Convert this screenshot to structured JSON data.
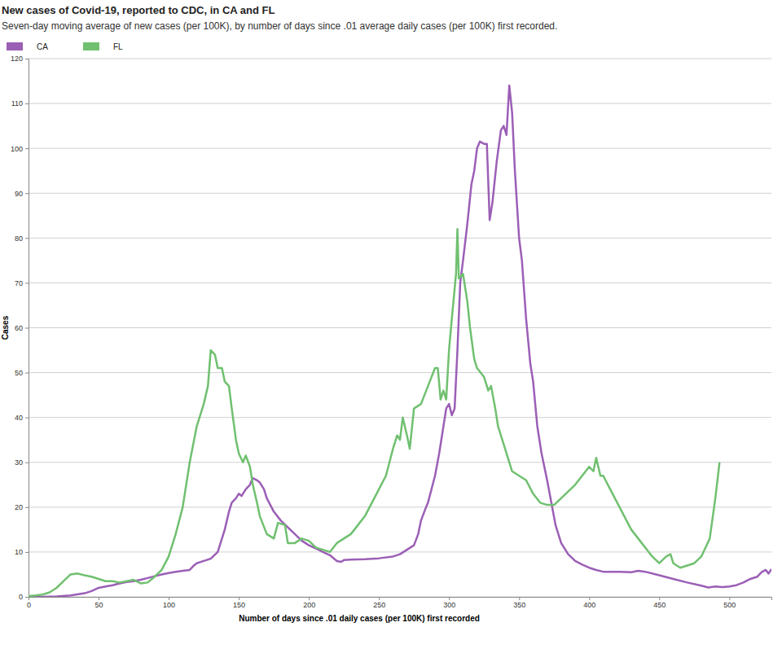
{
  "chart_data": {
    "type": "line",
    "title": "New cases of Covid-19, reported to CDC, in CA and FL",
    "subtitle": "Seven-day moving average of new cases (per 100K), by number of days since .01 average daily cases (per 100K) first recorded.",
    "x_label": "Number of days since .01 daily cases (per 100K) first recorded",
    "y_label": "Cases",
    "xlim": [
      0,
      530
    ],
    "xticks": [
      0,
      50,
      100,
      150,
      200,
      250,
      300,
      350,
      400,
      450,
      500
    ],
    "ylim": [
      0,
      120
    ],
    "yticks": [
      0,
      10,
      20,
      30,
      40,
      50,
      60,
      70,
      80,
      90,
      100,
      110,
      120
    ],
    "grid": true,
    "legend": "top-left",
    "series": [
      {
        "name": "CA",
        "color": "#9b5fb6",
        "x": [
          0,
          10,
          20,
          30,
          40,
          45,
          50,
          55,
          60,
          65,
          70,
          75,
          80,
          85,
          90,
          95,
          100,
          105,
          110,
          115,
          118,
          120,
          125,
          130,
          135,
          138,
          140,
          143,
          145,
          148,
          150,
          152,
          155,
          158,
          160,
          163,
          165,
          168,
          170,
          175,
          180,
          185,
          190,
          195,
          200,
          205,
          210,
          215,
          220,
          223,
          225,
          230,
          240,
          250,
          260,
          265,
          270,
          275,
          278,
          280,
          283,
          285,
          290,
          293,
          296,
          298,
          300,
          302,
          304,
          306,
          308,
          310,
          313,
          316,
          318,
          320,
          322,
          325,
          327,
          329,
          331,
          334,
          337,
          339,
          341,
          343,
          345,
          347,
          350,
          352,
          355,
          358,
          360,
          363,
          366,
          370,
          373,
          376,
          380,
          385,
          390,
          395,
          400,
          405,
          410,
          420,
          430,
          435,
          440,
          450,
          460,
          470,
          480,
          485,
          490,
          495,
          500,
          505,
          510,
          515,
          520,
          523,
          526,
          528,
          530
        ],
        "values": [
          0,
          0,
          0.1,
          0.3,
          0.8,
          1.3,
          2,
          2.3,
          2.6,
          3,
          3.3,
          3.5,
          3.8,
          4.2,
          4.6,
          5,
          5.3,
          5.6,
          5.8,
          6,
          7,
          7.5,
          8,
          8.5,
          10,
          13,
          15,
          19,
          21,
          22,
          23,
          22.5,
          24,
          25,
          26.5,
          26,
          25.5,
          24,
          22,
          19,
          17,
          15.5,
          14,
          12.5,
          11.5,
          10.8,
          10,
          9.3,
          8,
          7.8,
          8.2,
          8.3,
          8.4,
          8.6,
          9,
          9.5,
          10.5,
          11.5,
          14,
          17,
          19.5,
          21,
          27,
          32,
          38,
          42,
          43,
          40.5,
          42,
          55,
          70,
          75,
          83,
          92,
          95,
          100,
          101.5,
          101,
          101,
          84,
          88,
          97,
          104,
          105,
          103,
          114,
          108,
          95,
          80,
          75,
          62,
          52,
          48,
          38,
          32,
          26,
          21,
          16,
          12,
          9.5,
          8,
          7.2,
          6.5,
          6,
          5.6,
          5.6,
          5.5,
          5.8,
          5.6,
          4.8,
          4,
          3.2,
          2.5,
          2.1,
          2.3,
          2.2,
          2.3,
          2.6,
          3.2,
          4,
          4.5,
          5.5,
          6,
          5.2,
          6.2
        ]
      },
      {
        "name": "FL",
        "color": "#70c070",
        "x": [
          0,
          5,
          10,
          15,
          20,
          25,
          30,
          35,
          40,
          45,
          50,
          55,
          60,
          65,
          70,
          75,
          80,
          85,
          90,
          95,
          100,
          105,
          110,
          115,
          120,
          125,
          128,
          130,
          133,
          135,
          138,
          140,
          143,
          145,
          148,
          150,
          153,
          155,
          158,
          160,
          163,
          165,
          170,
          175,
          178,
          183,
          185,
          190,
          195,
          200,
          205,
          210,
          215,
          220,
          225,
          230,
          235,
          240,
          245,
          250,
          255,
          260,
          263,
          265,
          267,
          270,
          272,
          275,
          280,
          285,
          290,
          292,
          294,
          296,
          298,
          300,
          302,
          305,
          306,
          307,
          310,
          313,
          315,
          318,
          320,
          325,
          328,
          330,
          333,
          335,
          340,
          345,
          350,
          355,
          360,
          365,
          370,
          375,
          380,
          385,
          390,
          395,
          400,
          403,
          405,
          408,
          410,
          415,
          420,
          425,
          430,
          435,
          440,
          445,
          450,
          455,
          458,
          460,
          465,
          470,
          475,
          480,
          483,
          486,
          490,
          493
        ],
        "values": [
          0.2,
          0.3,
          0.5,
          1,
          2,
          3.5,
          5,
          5.2,
          4.8,
          4.5,
          4,
          3.5,
          3.5,
          3.2,
          3.5,
          3.8,
          3,
          3.2,
          4.5,
          6,
          9,
          14,
          20,
          30,
          38,
          43,
          47,
          55,
          54,
          51,
          51,
          48,
          47,
          42,
          35,
          32,
          30,
          31.5,
          29,
          25,
          21,
          18,
          14,
          13,
          16.5,
          16,
          12,
          12,
          13,
          12.5,
          11,
          10.5,
          10,
          12,
          13,
          14,
          16,
          18,
          21,
          24,
          27,
          33,
          36,
          35,
          40,
          36,
          33,
          42,
          43,
          47,
          51,
          51,
          44,
          46,
          44,
          55,
          62,
          72,
          82,
          71,
          72,
          66,
          60,
          53,
          51,
          49,
          46,
          47,
          42,
          38,
          33,
          28,
          27,
          26,
          23,
          21,
          20.5,
          20.5,
          22,
          23.5,
          25,
          27,
          29,
          28,
          31,
          27,
          27,
          24,
          21,
          18,
          15,
          13,
          11,
          9,
          7.5,
          9,
          9.5,
          7.5,
          6.5,
          7,
          7.5,
          9,
          11,
          13,
          22,
          30
        ]
      }
    ]
  }
}
